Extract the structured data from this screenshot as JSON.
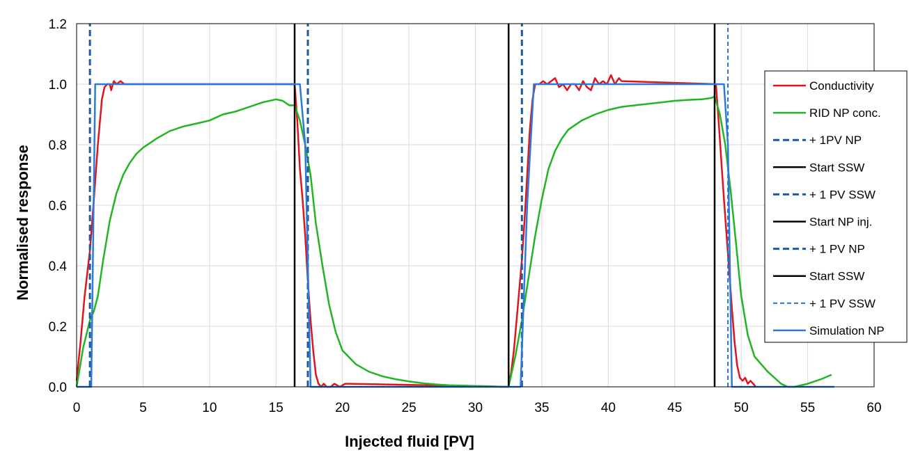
{
  "chart_data": {
    "type": "line",
    "title": "",
    "xlabel": "Injected fluid [PV]",
    "ylabel": "Normalised response",
    "xlim": [
      0,
      60
    ],
    "ylim": [
      0,
      1.2
    ],
    "xticks": [
      0,
      5,
      10,
      15,
      20,
      25,
      30,
      35,
      40,
      45,
      50,
      55,
      60
    ],
    "yticks": [
      0,
      0.2,
      0.4,
      0.6,
      0.8,
      1.0,
      1.2
    ],
    "xtick_labels": [
      "0",
      "5",
      "10",
      "15",
      "20",
      "25",
      "30",
      "35",
      "40",
      "45",
      "50",
      "55",
      "60"
    ],
    "ytick_labels": [
      "0.0",
      "0.2",
      "0.4",
      "0.6",
      "0.8",
      "1.0",
      "1.2"
    ],
    "grid": true,
    "legend_position": "right",
    "series": [
      {
        "name": "Conductivity",
        "color": "#e0141c",
        "dash": "solid",
        "x": [
          0,
          0.3,
          0.6,
          1.0,
          1.3,
          1.6,
          1.9,
          2.1,
          2.3,
          2.5,
          2.6,
          2.8,
          3.0,
          3.3,
          3.6,
          3.9,
          4.2,
          4.3,
          16.4,
          16.6,
          16.8,
          17.0,
          17.2,
          17.4,
          17.6,
          17.8,
          18.0,
          18.2,
          18.4,
          18.6,
          18.8,
          19.1,
          19.4,
          19.8,
          20.2,
          20.6,
          32.5,
          32.7,
          32.9,
          33.1,
          33.3,
          33.5,
          33.7,
          33.9,
          34.1,
          34.3,
          34.5,
          34.8,
          35.1,
          35.4,
          35.7,
          36.0,
          36.3,
          36.6,
          36.9,
          37.2,
          37.5,
          37.8,
          38.1,
          38.4,
          38.7,
          39.0,
          39.3,
          39.6,
          39.9,
          40.2,
          40.5,
          40.8,
          41.0,
          48.1,
          48.3,
          48.5,
          48.7,
          48.9,
          49.1,
          49.3,
          49.5,
          49.7,
          49.9,
          50.1,
          50.3,
          50.5,
          50.7,
          50.9,
          51.1
        ],
        "y": [
          0.02,
          0.15,
          0.3,
          0.45,
          0.62,
          0.8,
          0.95,
          0.99,
          1.0,
          1.0,
          0.98,
          1.01,
          1.0,
          1.01,
          1.0,
          1.0,
          1.0,
          1.0,
          1.0,
          0.88,
          0.72,
          0.62,
          0.5,
          0.35,
          0.22,
          0.12,
          0.04,
          0.01,
          0.0,
          0.01,
          0.0,
          0.0,
          0.01,
          0.0,
          0.01,
          0.01,
          0.0,
          0.05,
          0.12,
          0.22,
          0.32,
          0.42,
          0.55,
          0.7,
          0.85,
          0.95,
          1.0,
          1.0,
          1.01,
          1.0,
          1.01,
          1.02,
          0.99,
          1.0,
          0.98,
          1.0,
          1.0,
          0.98,
          1.01,
          0.99,
          0.98,
          1.02,
          1.0,
          1.01,
          1.0,
          1.03,
          1.0,
          1.02,
          1.01,
          1.0,
          0.88,
          0.75,
          0.62,
          0.5,
          0.38,
          0.26,
          0.15,
          0.07,
          0.03,
          0.02,
          0.03,
          0.01,
          0.02,
          0.01,
          0.0
        ]
      },
      {
        "name": "RID NP conc.",
        "color": "#22b522",
        "dash": "solid",
        "x": [
          0,
          0.5,
          1.0,
          1.3,
          1.6,
          2.0,
          2.5,
          3.0,
          3.5,
          4.0,
          4.5,
          5.0,
          6.0,
          7.0,
          8.0,
          9.0,
          10.0,
          11.0,
          12.0,
          13.0,
          14.0,
          15.0,
          15.5,
          16.0,
          16.4,
          16.8,
          17.2,
          17.6,
          18.0,
          18.5,
          19.0,
          19.5,
          20.0,
          21.0,
          22.0,
          23.0,
          24.0,
          25.0,
          26.0,
          27.0,
          28.0,
          29.0,
          30.0,
          31.0,
          32.0,
          32.5,
          33.0,
          33.5,
          34.0,
          34.5,
          35.0,
          35.5,
          36.0,
          36.5,
          37.0,
          38.0,
          39.0,
          40.0,
          41.0,
          42.0,
          43.0,
          44.0,
          45.0,
          46.0,
          47.0,
          47.8,
          48.0,
          48.4,
          48.8,
          49.2,
          49.6,
          50.0,
          50.5,
          51.0,
          52.0,
          53.0,
          53.5,
          54.0,
          55.0,
          56.0,
          56.8
        ],
        "y": [
          0.0,
          0.13,
          0.22,
          0.25,
          0.3,
          0.42,
          0.55,
          0.64,
          0.7,
          0.74,
          0.77,
          0.79,
          0.82,
          0.845,
          0.86,
          0.87,
          0.88,
          0.9,
          0.91,
          0.925,
          0.94,
          0.95,
          0.945,
          0.93,
          0.93,
          0.88,
          0.8,
          0.7,
          0.54,
          0.4,
          0.27,
          0.18,
          0.12,
          0.075,
          0.05,
          0.035,
          0.025,
          0.018,
          0.012,
          0.008,
          0.005,
          0.004,
          0.003,
          0.002,
          0.0,
          0.0,
          0.1,
          0.22,
          0.36,
          0.5,
          0.62,
          0.72,
          0.78,
          0.82,
          0.85,
          0.88,
          0.9,
          0.915,
          0.925,
          0.93,
          0.935,
          0.94,
          0.945,
          0.948,
          0.95,
          0.955,
          0.96,
          0.9,
          0.8,
          0.65,
          0.48,
          0.3,
          0.17,
          0.1,
          0.05,
          0.01,
          0.0,
          0.0,
          0.01,
          0.025,
          0.04
        ]
      },
      {
        "name": "+ 1PV  NP",
        "color": "#1f5aa0",
        "dash": "dashed-thick",
        "x": [
          1.0,
          1.0
        ],
        "y": [
          0,
          1.2
        ]
      },
      {
        "name": "Start SSW",
        "color": "#000000",
        "dash": "solid",
        "x": [
          16.4,
          16.4
        ],
        "y": [
          0,
          1.2
        ]
      },
      {
        "name": "+ 1 PV SSW",
        "color": "#1f5aa0",
        "dash": "dashed-thick",
        "x": [
          17.4,
          17.4
        ],
        "y": [
          0,
          1.2
        ]
      },
      {
        "name": "Start NP inj.",
        "color": "#000000",
        "dash": "solid",
        "x": [
          32.5,
          32.5
        ],
        "y": [
          0,
          1.2
        ]
      },
      {
        "name": "+ 1 PV NP",
        "color": "#1f5aa0",
        "dash": "dashed-thick",
        "x": [
          33.5,
          33.5
        ],
        "y": [
          0,
          1.2
        ]
      },
      {
        "name": "Start SSW",
        "color": "#000000",
        "dash": "solid",
        "x": [
          48.0,
          48.0
        ],
        "y": [
          0,
          1.2
        ]
      },
      {
        "name": "+ 1 PV SSW",
        "color": "#2f6fc0",
        "dash": "dashed-thin",
        "x": [
          49.0,
          49.0
        ],
        "y": [
          0,
          1.2
        ]
      },
      {
        "name": "Simulation NP",
        "color": "#2b7bd6",
        "dash": "solid",
        "x": [
          0,
          1.1,
          1.4,
          16.5,
          16.8,
          17.2,
          17.6,
          32.5,
          33.4,
          33.9,
          34.4,
          48.1,
          48.7,
          49.0,
          49.3,
          57
        ],
        "y": [
          0,
          0,
          1.0,
          1.0,
          1.0,
          0.8,
          0.0,
          0.0,
          0.0,
          0.6,
          1.0,
          1.0,
          1.0,
          0.8,
          0.0,
          0.0
        ]
      }
    ]
  }
}
